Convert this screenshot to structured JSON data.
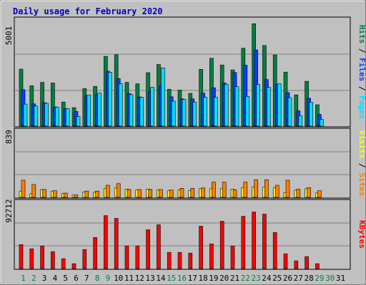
{
  "chart_data": {
    "type": "bar",
    "title": "Daily usage for February 2020",
    "days": [
      "1",
      "2",
      "3",
      "4",
      "5",
      "6",
      "7",
      "8",
      "9",
      "10",
      "11",
      "12",
      "13",
      "14",
      "15",
      "16",
      "17",
      "18",
      "19",
      "20",
      "21",
      "22",
      "23",
      "24",
      "25",
      "26",
      "27",
      "28",
      "29",
      "30",
      "31"
    ],
    "weekend_days": [
      "1",
      "2",
      "8",
      "9",
      "15",
      "16",
      "22",
      "23",
      "29",
      "30"
    ],
    "panels": {
      "top": {
        "max_label": "5001",
        "ymax": 5001,
        "axis_label": {
          "pages": "Pages",
          "files": "Files",
          "hits": "Hits",
          "sep": " / "
        },
        "series": [
          {
            "name": "Hits",
            "color": "#008040",
            "values": [
              2720,
              1930,
              2090,
              2060,
              1150,
              880,
              1790,
              1900,
              3330,
              3410,
              2090,
              2020,
              2550,
              2940,
              1760,
              1720,
              1560,
              2710,
              3240,
              2920,
              2680,
              3720,
              4890,
              3850,
              3400,
              2580,
              1490,
              2140,
              1020,
              null,
              null
            ]
          },
          {
            "name": "Files",
            "color": "#0040ff",
            "values": [
              1740,
              1060,
              1120,
              920,
              840,
              700,
              1440,
              1490,
              2620,
              2270,
              1560,
              1390,
              1650,
              1910,
              1400,
              1300,
              1300,
              1580,
              1830,
              2060,
              2560,
              2910,
              3640,
              2220,
              1990,
              1600,
              730,
              1330,
              560,
              null,
              null
            ]
          },
          {
            "name": "Pages",
            "color": "#00e0ff",
            "values": [
              1050,
              960,
              1090,
              900,
              830,
              460,
              1490,
              1580,
              2570,
              2020,
              1500,
              1370,
              1850,
              2780,
              1190,
              1270,
              1140,
              1380,
              1380,
              2000,
              1880,
              1420,
              1990,
              1850,
              2020,
              1360,
              500,
              1140,
              320,
              null,
              null
            ]
          }
        ]
      },
      "middle": {
        "max_label": "839",
        "ymax": 839,
        "axis_label": {
          "sites": "Sites",
          "visits": "Visits",
          "sep": " / "
        },
        "series": [
          {
            "name": "Visits",
            "color": "#ffff00",
            "values": [
              80,
              45,
              100,
              80,
              50,
              28,
              70,
              65,
              115,
              120,
              105,
              95,
              105,
              95,
              85,
              95,
              85,
              110,
              110,
              110,
              105,
              125,
              130,
              130,
              120,
              60,
              90,
              110,
              55,
              null,
              null
            ]
          },
          {
            "name": "Sites",
            "color": "#ff8000",
            "values": [
              220,
              165,
              100,
              85,
              55,
              30,
              80,
              80,
              155,
              175,
              100,
              100,
              100,
              100,
              95,
              115,
              115,
              120,
              195,
              195,
              95,
              195,
              225,
              225,
              155,
              220,
              105,
              125,
              85,
              null,
              null
            ]
          }
        ]
      },
      "bottom": {
        "max_label": "92712",
        "ymax": 92712,
        "axis_label": {
          "kbytes": "KBytes"
        },
        "series": [
          {
            "name": "KBytes",
            "color": "#ff0000",
            "values": [
              34000,
              28000,
              32000,
              24000,
              14000,
              7000,
              27000,
              44000,
              75000,
              71000,
              32000,
              32000,
              55000,
              62000,
              23000,
              23000,
              22000,
              60000,
              35000,
              67000,
              32000,
              74000,
              80000,
              77000,
              51000,
              21000,
              11000,
              17000,
              7000,
              null,
              null
            ]
          }
        ]
      }
    }
  }
}
